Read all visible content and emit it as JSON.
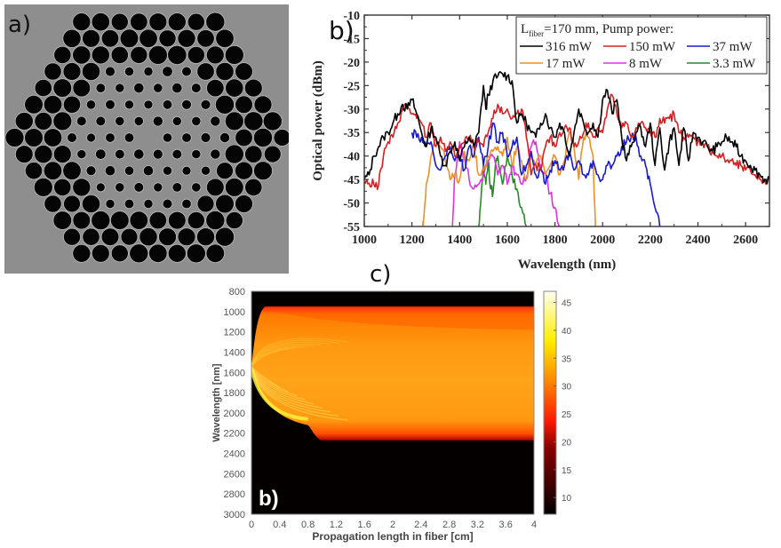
{
  "panels": {
    "a": {
      "label": "a)",
      "description": "SEM image of photonic crystal fiber cross-section (hexagonal array of air holes)"
    },
    "b": {
      "label": "b)"
    },
    "c": {
      "label": "c)",
      "inset_label": "b)"
    }
  },
  "chart_data": [
    {
      "id": "b",
      "type": "line",
      "title": "",
      "xlabel": "Wavelength (nm)",
      "ylabel": "Optical power (dBm)",
      "xlim": [
        1000,
        2700
      ],
      "ylim": [
        -55,
        -10
      ],
      "x_ticks": [
        1000,
        1200,
        1400,
        1600,
        1800,
        2000,
        2200,
        2400,
        2600
      ],
      "y_ticks": [
        -55,
        -50,
        -45,
        -40,
        -35,
        -30,
        -25,
        -20,
        -15,
        -10
      ],
      "grid": false,
      "legend": {
        "placement": "top-right",
        "title_main": "L",
        "title_sub": "fiber",
        "title_rest": "=170 mm, Pump power:",
        "entries": [
          {
            "name": "316 mW",
            "color": "#000000"
          },
          {
            "name": "150 mW",
            "color": "#d42020"
          },
          {
            "name": "37 mW",
            "color": "#1a1ac8"
          },
          {
            "name": "17 mW",
            "color": "#e8902a"
          },
          {
            "name": "8 mW",
            "color": "#e030e0"
          },
          {
            "name": "3.3 mW",
            "color": "#2a8a2a"
          }
        ]
      },
      "series": [
        {
          "name": "316 mW",
          "color": "#000000",
          "x": [
            1000,
            1020,
            1040,
            1060,
            1080,
            1100,
            1120,
            1140,
            1160,
            1180,
            1200,
            1220,
            1240,
            1260,
            1280,
            1300,
            1320,
            1340,
            1360,
            1380,
            1400,
            1420,
            1440,
            1460,
            1480,
            1500,
            1510,
            1520,
            1540,
            1560,
            1580,
            1600,
            1620,
            1640,
            1660,
            1680,
            1700,
            1720,
            1740,
            1760,
            1780,
            1800,
            1820,
            1840,
            1860,
            1880,
            1900,
            1920,
            1940,
            1960,
            1980,
            2000,
            2020,
            2040,
            2060,
            2080,
            2100,
            2120,
            2140,
            2160,
            2180,
            2200,
            2220,
            2240,
            2260,
            2280,
            2300,
            2320,
            2340,
            2360,
            2380,
            2400,
            2420,
            2440,
            2460,
            2480,
            2500,
            2520,
            2540,
            2560,
            2580,
            2600,
            2620,
            2640,
            2660,
            2680,
            2700
          ],
          "y": [
            -45,
            -44,
            -40,
            -38,
            -36,
            -35,
            -33,
            -31,
            -29,
            -30,
            -28,
            -31,
            -35,
            -38,
            -34,
            -36,
            -40,
            -42,
            -39,
            -37,
            -41,
            -38,
            -36,
            -38,
            -35,
            -25,
            -30,
            -27,
            -24,
            -23,
            -22.5,
            -23,
            -24,
            -33,
            -31,
            -33,
            -35,
            -36,
            -33,
            -31,
            -34,
            -36,
            -33,
            -35,
            -40,
            -35,
            -30,
            -33,
            -35,
            -33,
            -36,
            -28,
            -26,
            -31,
            -28,
            -36,
            -41,
            -38,
            -35,
            -34,
            -38,
            -33,
            -42,
            -34,
            -43,
            -37,
            -34,
            -42,
            -34,
            -41,
            -35,
            -36,
            -37,
            -38,
            -39,
            -38,
            -37,
            -36,
            -37,
            -38,
            -40,
            -41,
            -42,
            -43,
            -44,
            -45,
            -45
          ]
        },
        {
          "name": "150 mW",
          "color": "#d42020",
          "x": [
            1000,
            1020,
            1040,
            1060,
            1080,
            1100,
            1120,
            1140,
            1160,
            1180,
            1200,
            1220,
            1240,
            1260,
            1280,
            1300,
            1320,
            1340,
            1360,
            1380,
            1400,
            1420,
            1440,
            1460,
            1480,
            1500,
            1520,
            1540,
            1560,
            1580,
            1600,
            1620,
            1640,
            1660,
            1680,
            1700,
            1720,
            1740,
            1760,
            1780,
            1800,
            1820,
            1840,
            1860,
            1880,
            1900,
            1920,
            1940,
            1960,
            1980,
            2000,
            2020,
            2040,
            2060,
            2080,
            2100,
            2120,
            2140,
            2160,
            2180,
            2200,
            2220,
            2240,
            2260,
            2280,
            2300,
            2320,
            2340,
            2360,
            2380,
            2400,
            2420,
            2440,
            2460,
            2480,
            2500,
            2520,
            2540,
            2560,
            2580,
            2600,
            2620,
            2640,
            2660,
            2680,
            2700
          ],
          "y": [
            -45.5,
            -45.8,
            -46,
            -46.2,
            -40,
            -37,
            -36,
            -33,
            -30,
            -29,
            -31,
            -32,
            -33,
            -36,
            -33,
            -38,
            -36,
            -39,
            -37,
            -40,
            -38,
            -37,
            -36,
            -38,
            -37,
            -38,
            -35,
            -32,
            -29,
            -31,
            -30,
            -32,
            -31,
            -30,
            -36,
            -44,
            -42,
            -43,
            -38,
            -36,
            -38,
            -35,
            -34,
            -34,
            -38,
            -37,
            -35,
            -33,
            -36,
            -34,
            -35,
            -30,
            -27,
            -31,
            -34,
            -33,
            -36,
            -34,
            -33,
            -34,
            -35,
            -36,
            -32,
            -33,
            -32,
            -31,
            -35,
            -36,
            -36,
            -36,
            -37,
            -37,
            -38,
            -39,
            -40,
            -40,
            -41,
            -41,
            -42,
            -42,
            -43,
            -43,
            -44,
            -45,
            -45,
            -45
          ]
        },
        {
          "name": "37 mW",
          "color": "#1a1ac8",
          "x": [
            1200,
            1220,
            1240,
            1260,
            1280,
            1300,
            1320,
            1340,
            1360,
            1380,
            1400,
            1420,
            1440,
            1460,
            1480,
            1500,
            1520,
            1540,
            1560,
            1580,
            1600,
            1620,
            1640,
            1660,
            1680,
            1700,
            1720,
            1740,
            1760,
            1780,
            1800,
            1820,
            1840,
            1860,
            1880,
            1900,
            1920,
            1940,
            1960,
            1980,
            2000,
            2020,
            2040,
            2060,
            2080,
            2100,
            2120,
            2140,
            2160,
            2180,
            2200,
            2220,
            2240
          ],
          "y": [
            -35,
            -36,
            -36,
            -38,
            -37,
            -42,
            -43,
            -40,
            -38,
            -41,
            -40,
            -43,
            -38,
            -40,
            -36,
            -42,
            -38,
            -33,
            -37,
            -35,
            -40,
            -38,
            -36,
            -44,
            -42,
            -39,
            -44,
            -43,
            -46,
            -43,
            -41,
            -43,
            -42,
            -39,
            -43,
            -41,
            -44,
            -44,
            -41,
            -44,
            -45,
            -42,
            -42,
            -40,
            -38,
            -37,
            -36,
            -36,
            -40,
            -42,
            -46,
            -51,
            -55
          ]
        },
        {
          "name": "17 mW",
          "color": "#e8902a",
          "x": [
            1245,
            1250,
            1260,
            1280,
            1300,
            1320,
            1340,
            1360,
            1380,
            1400,
            1420,
            1440,
            1460,
            1480,
            1500,
            1520,
            1540,
            1560,
            1580,
            1600,
            1620,
            1640,
            1660,
            1680,
            1700,
            1720,
            1740,
            1760,
            1780,
            1800,
            1820,
            1840,
            1860,
            1880,
            1900,
            1920,
            1940,
            1960,
            1970
          ],
          "y": [
            -55,
            -53,
            -46,
            -40,
            -36,
            -38,
            -41,
            -45,
            -44,
            -45,
            -39,
            -41,
            -38,
            -44,
            -43,
            -40,
            -39,
            -38,
            -40,
            -36,
            -42,
            -38,
            -41,
            -45,
            -39,
            -42,
            -40,
            -44,
            -42,
            -40,
            -44,
            -41,
            -35,
            -38,
            -45,
            -36,
            -36,
            -40,
            -55
          ]
        },
        {
          "name": "8 mW",
          "color": "#e030e0",
          "x": [
            1370,
            1380,
            1400,
            1420,
            1440,
            1460,
            1480,
            1500,
            1520,
            1540,
            1560,
            1580,
            1600,
            1620,
            1640,
            1660,
            1680,
            1700,
            1720,
            1740,
            1760,
            1780,
            1800,
            1820
          ],
          "y": [
            -55,
            -44,
            -37,
            -40,
            -45,
            -47,
            -46,
            -44,
            -41,
            -40,
            -44,
            -42,
            -46,
            -42,
            -44,
            -46,
            -45,
            -38,
            -37,
            -42,
            -44,
            -48,
            -51,
            -55
          ]
        },
        {
          "name": "3.3 mW",
          "color": "#2a8a2a",
          "x": [
            1480,
            1490,
            1500,
            1510,
            1520,
            1530,
            1540,
            1550,
            1560,
            1580,
            1600,
            1620,
            1640,
            1660,
            1680
          ],
          "y": [
            -55,
            -49,
            -42,
            -46,
            -41,
            -47,
            -48,
            -42,
            -40,
            -46,
            -40,
            -44,
            -47,
            -51,
            -55
          ]
        }
      ]
    },
    {
      "id": "c",
      "type": "heatmap",
      "title": "",
      "xlabel": "Propagation length in fiber [cm]",
      "ylabel": "Wavelength [nm]",
      "xlim": [
        0,
        4
      ],
      "ylim": [
        800,
        3000
      ],
      "x_ticks": [
        "0",
        "0.4",
        "0.8",
        "1.2",
        "1.6",
        "2",
        "2.4",
        "2.8",
        "3.2",
        "3.6",
        "4"
      ],
      "y_ticks": [
        "800",
        "1000",
        "1200",
        "1400",
        "1600",
        "1800",
        "2000",
        "2200",
        "2400",
        "2600",
        "2800",
        "3000"
      ],
      "colorbar": {
        "min": 7,
        "max": 47,
        "ticks": [
          "10",
          "15",
          "20",
          "25",
          "30",
          "35",
          "40",
          "45"
        ],
        "colormap": "hot"
      },
      "annotation": "b)",
      "spectral_band": {
        "pump_wavelength_nm": 1550,
        "final_short_edge_nm": 950,
        "final_long_edge_nm": 2270,
        "typical_level": 30,
        "peak_level": 45
      }
    }
  ]
}
